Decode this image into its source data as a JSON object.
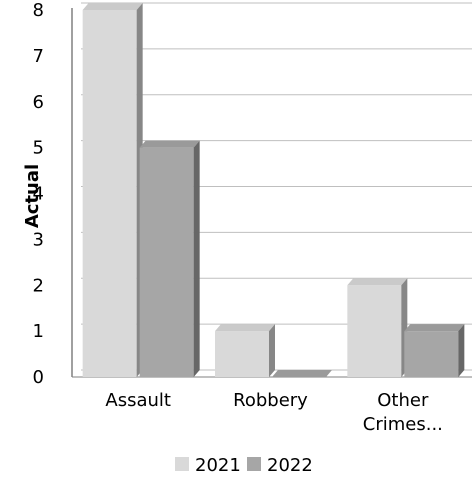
{
  "chart_data": {
    "type": "bar",
    "categories": [
      "Assault",
      "Robbery",
      "Other Crimes..."
    ],
    "category_lines": [
      [
        "Assault"
      ],
      [
        "Robbery"
      ],
      [
        "Other",
        "Crimes..."
      ]
    ],
    "series": [
      {
        "name": "2021",
        "values": [
          8,
          1,
          2
        ],
        "color": "#d9d9d9"
      },
      {
        "name": "2022",
        "values": [
          5,
          0,
          1
        ],
        "color": "#a6a6a6"
      }
    ],
    "yticks": [
      "0",
      "1",
      "2",
      "3",
      "4",
      "5",
      "6",
      "7",
      "8"
    ],
    "ylabel": "Actual",
    "xlabel": "",
    "title": "",
    "ylim": [
      0,
      8
    ],
    "grid": true,
    "legend": "bottom",
    "style": "3d"
  }
}
